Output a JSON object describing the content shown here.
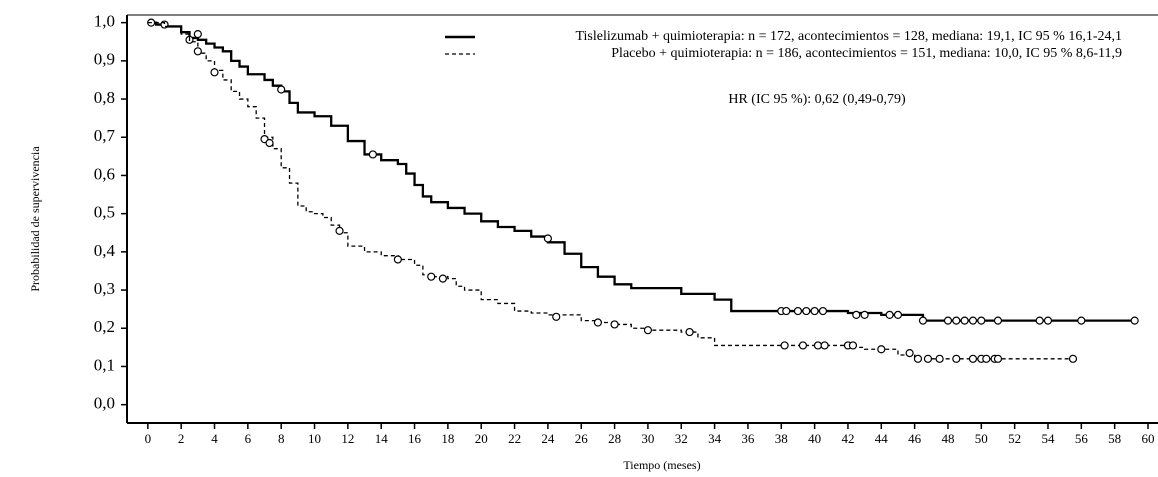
{
  "chart_data": {
    "type": "step",
    "xlabel": "Tiempo (meses)",
    "ylabel": "Probabilidad de supervivencia",
    "annotation": "HR (IC 95 %): 0,62 (0,49-0,79)",
    "xlim": [
      -1.25,
      60.6
    ],
    "ylim": [
      -0.048,
      1.02
    ],
    "xticks": [
      0,
      2,
      4,
      6,
      8,
      10,
      12,
      14,
      16,
      18,
      20,
      22,
      24,
      26,
      28,
      30,
      32,
      34,
      36,
      38,
      40,
      42,
      44,
      46,
      48,
      50,
      52,
      54,
      56,
      58,
      60
    ],
    "yticks": [
      {
        "value": 0,
        "label": "0,0"
      },
      {
        "value": 0.1,
        "label": "0,1"
      },
      {
        "value": 0.2,
        "label": "0,2"
      },
      {
        "value": 0.3,
        "label": "0,3"
      },
      {
        "value": 0.4,
        "label": "0,4"
      },
      {
        "value": 0.5,
        "label": "0,5"
      },
      {
        "value": 0.6,
        "label": "0,6"
      },
      {
        "value": 0.7,
        "label": "0,7"
      },
      {
        "value": 0.8,
        "label": "0,8"
      },
      {
        "value": 0.9,
        "label": "0,9"
      },
      {
        "value": 1,
        "label": "1,0"
      }
    ],
    "series": [
      {
        "name": "Tislelizumab + quimioterapia: n = 172, acontecimientos = 128, mediana: 19,1, IC 95 % 16,1-24,1",
        "color": "#000000",
        "dash": "solid",
        "x": [
          0,
          0.5,
          1,
          2,
          2.5,
          3,
          3.5,
          4,
          4.5,
          5,
          5.5,
          6,
          7,
          7.5,
          8,
          8.5,
          9,
          10,
          11,
          12,
          13,
          14,
          15,
          15.5,
          16,
          16.5,
          17,
          18,
          19,
          20,
          21,
          22,
          23,
          24,
          25,
          26,
          27,
          28,
          29,
          30,
          32,
          34,
          35,
          40,
          42,
          44,
          46.5,
          59.2
        ],
        "values": [
          1.0,
          0.995,
          0.99,
          0.975,
          0.96,
          0.955,
          0.945,
          0.935,
          0.925,
          0.9,
          0.885,
          0.865,
          0.85,
          0.835,
          0.82,
          0.79,
          0.765,
          0.755,
          0.73,
          0.69,
          0.655,
          0.64,
          0.63,
          0.605,
          0.575,
          0.545,
          0.53,
          0.515,
          0.5,
          0.48,
          0.465,
          0.455,
          0.44,
          0.425,
          0.395,
          0.36,
          0.335,
          0.315,
          0.305,
          0.305,
          0.29,
          0.275,
          0.245,
          0.245,
          0.24,
          0.235,
          0.22,
          0.22
        ],
        "censor_x": [
          0.2,
          1,
          2.5,
          3,
          8,
          13.5,
          24,
          38,
          38.3,
          39,
          39.5,
          40,
          40.5,
          42.5,
          43,
          44.5,
          45,
          46.5,
          48,
          48.5,
          49,
          49.5,
          50,
          51,
          53.5,
          54,
          56,
          59.2
        ],
        "censor_values": [
          1.0,
          0.995,
          0.955,
          0.97,
          0.825,
          0.655,
          0.435,
          0.245,
          0.245,
          0.245,
          0.245,
          0.245,
          0.245,
          0.235,
          0.235,
          0.235,
          0.235,
          0.22,
          0.22,
          0.22,
          0.22,
          0.22,
          0.22,
          0.22,
          0.22,
          0.22,
          0.22,
          0.22
        ]
      },
      {
        "name": "Placebo + quimioterapia: n = 186, acontecimientos = 151, mediana: 10,0, IC 95 % 8,6-11,9",
        "color": "#000000",
        "dash": "dashed",
        "x": [
          0,
          1,
          2,
          2.5,
          3,
          3.5,
          4,
          4.5,
          5,
          5.5,
          6,
          6.5,
          7,
          7.5,
          8,
          8.5,
          9,
          9.5,
          10,
          10.5,
          11,
          11.5,
          12,
          13,
          14,
          15,
          16,
          16.5,
          17,
          18,
          18.5,
          19,
          20,
          21,
          22,
          23,
          24,
          26,
          27,
          28,
          29,
          30,
          32,
          33,
          34,
          42,
          43,
          45,
          46,
          55.5
        ],
        "values": [
          1.0,
          0.99,
          0.97,
          0.95,
          0.92,
          0.9,
          0.875,
          0.85,
          0.82,
          0.8,
          0.78,
          0.75,
          0.7,
          0.67,
          0.62,
          0.58,
          0.52,
          0.505,
          0.5,
          0.49,
          0.47,
          0.45,
          0.415,
          0.4,
          0.39,
          0.38,
          0.365,
          0.34,
          0.335,
          0.33,
          0.31,
          0.3,
          0.275,
          0.265,
          0.245,
          0.24,
          0.235,
          0.22,
          0.215,
          0.21,
          0.2,
          0.195,
          0.19,
          0.175,
          0.155,
          0.15,
          0.145,
          0.13,
          0.12,
          0.12
        ],
        "censor_x": [
          3,
          4,
          7,
          7.3,
          11.5,
          15,
          17,
          17.7,
          24.5,
          27,
          28,
          30,
          32.5,
          38.2,
          39.3,
          40.2,
          40.6,
          42,
          42.3,
          44,
          45.7,
          46.2,
          46.8,
          47.5,
          48.5,
          49.5,
          50,
          50.3,
          50.8,
          51,
          55.5
        ],
        "censor_values": [
          0.925,
          0.87,
          0.695,
          0.685,
          0.455,
          0.38,
          0.335,
          0.33,
          0.23,
          0.215,
          0.21,
          0.195,
          0.19,
          0.155,
          0.155,
          0.155,
          0.155,
          0.155,
          0.155,
          0.145,
          0.135,
          0.12,
          0.12,
          0.12,
          0.12,
          0.12,
          0.12,
          0.12,
          0.12,
          0.12,
          0.12
        ]
      }
    ]
  }
}
